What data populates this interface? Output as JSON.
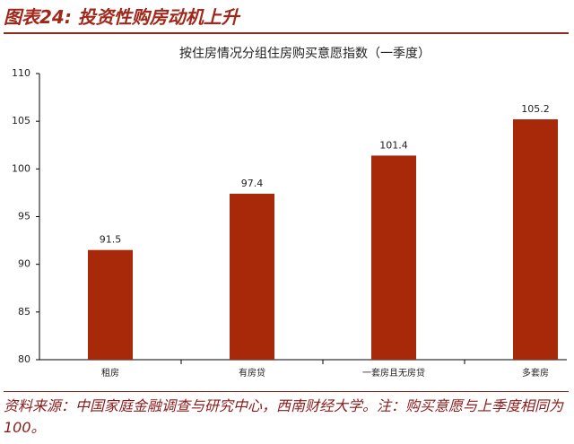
{
  "header": {
    "title": "图表24: 投资性购房动机上升"
  },
  "chart_data": {
    "type": "bar",
    "title": "按住房情况分组住房购买意愿指数（一季度）",
    "categories": [
      "租房",
      "有房贷",
      "一套房且无房贷",
      "多套房"
    ],
    "values": [
      91.5,
      97.4,
      101.4,
      105.2
    ],
    "color": "#a8290a",
    "ylim": [
      80,
      110
    ],
    "yticks": [
      80,
      85,
      90,
      95,
      100,
      105,
      110
    ],
    "grid": false
  },
  "footer": {
    "source": "资料来源：中国家庭金融调查与研究中心，西南财经大学。注：购买意愿与上季度相同为100。"
  }
}
